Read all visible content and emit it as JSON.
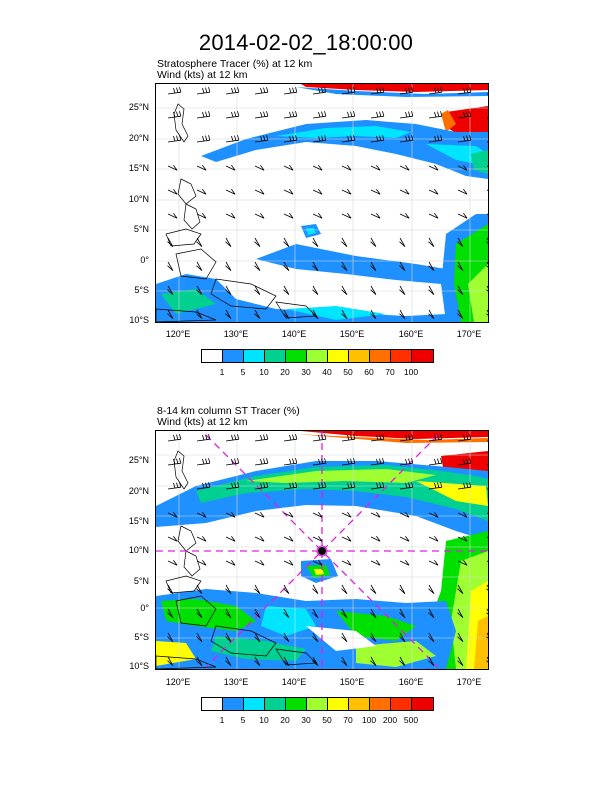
{
  "title": "2014-02-02_18:00:00",
  "panels": [
    {
      "title_line1": "Stratosphere Tracer   (%)     at   12 km",
      "title_line2": "Wind    (kts)      at   12 km",
      "lat_labels": [
        "25°N",
        "20°N",
        "15°N",
        "10°N",
        "5°N",
        "0°",
        "5°S",
        "10°S"
      ],
      "lon_labels": [
        "120°E",
        "130°E",
        "140°E",
        "150°E",
        "160°E",
        "170°E"
      ],
      "colorbar_labels": [
        "1",
        "5",
        "10",
        "20",
        "30",
        "40",
        "50",
        "60",
        "70",
        "100"
      ],
      "colorbar_colors": [
        "#ffffff",
        "#1e90ff",
        "#00e5ff",
        "#00d090",
        "#00e000",
        "#a0ff30",
        "#ffff00",
        "#ffc000",
        "#ff7000",
        "#ff3000",
        "#ee0000"
      ]
    },
    {
      "title_line1": "8-14 km column ST Tracer    (%)",
      "title_line2": "Wind    (kts)      at   12 km",
      "lat_labels": [
        "25°N",
        "20°N",
        "15°N",
        "10°N",
        "5°N",
        "0°",
        "5°S",
        "10°S"
      ],
      "lon_labels": [
        "120°E",
        "130°E",
        "140°E",
        "150°E",
        "160°E",
        "170°E"
      ],
      "colorbar_labels": [
        "1",
        "5",
        "10",
        "20",
        "30",
        "50",
        "70",
        "100",
        "200",
        "500"
      ],
      "colorbar_colors": [
        "#ffffff",
        "#1e90ff",
        "#00e5ff",
        "#00d090",
        "#00e000",
        "#a0ff30",
        "#ffff00",
        "#ffc000",
        "#ff7000",
        "#ff3000",
        "#ee0000"
      ]
    }
  ],
  "map_extent": {
    "lon_min": 116,
    "lon_max": 173,
    "lat_min": -10,
    "lat_max": 29
  },
  "storm_center": {
    "lon": 145,
    "lat": 10
  },
  "colors": {
    "crosshair": "#e020e0",
    "land_outline": "#000000"
  }
}
